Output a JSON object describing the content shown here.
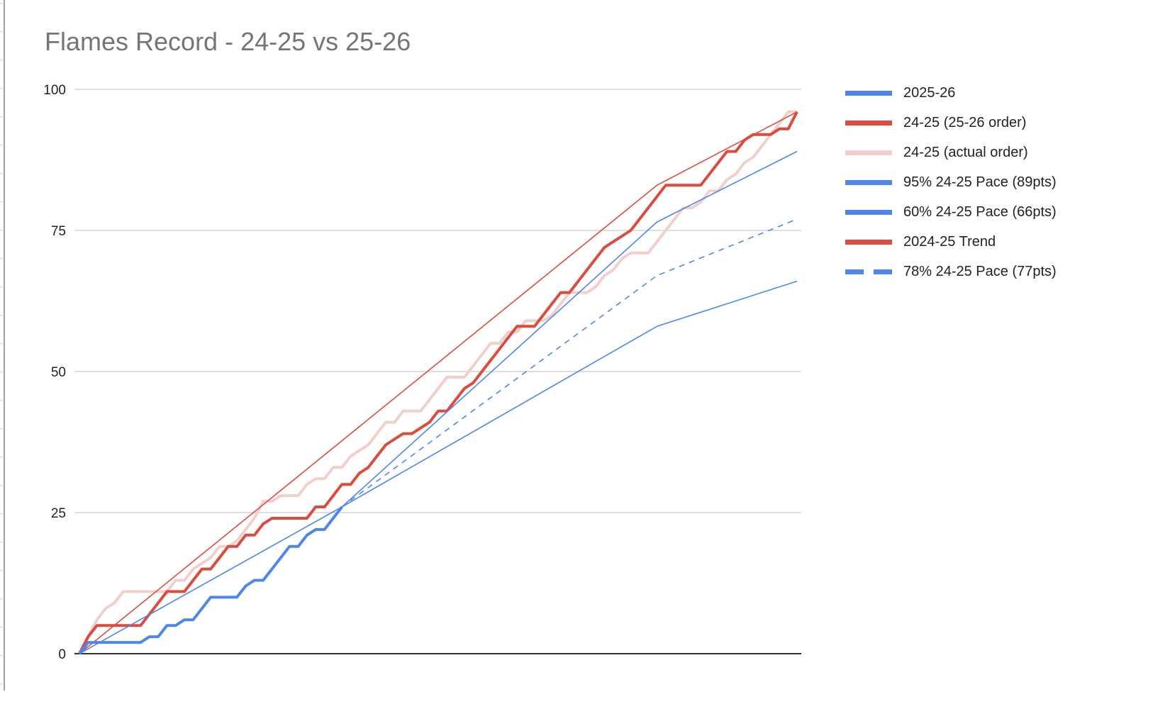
{
  "title": "Flames Record - 24-25 vs 25-26",
  "colors": {
    "blue": "#4f86ec",
    "red": "#db4c3f",
    "pink": "#f0cfcd",
    "grid": "#cccccc",
    "baseline": "#333333",
    "title": "#757575"
  },
  "legend": [
    {
      "label": "2025-26",
      "color": "#4f86ec",
      "style": "solid"
    },
    {
      "label": "24-25 (25-26 order)",
      "color": "#db4c3f",
      "style": "solid"
    },
    {
      "label": "24-25 (actual order)",
      "color": "#f0cfcd",
      "style": "solid"
    },
    {
      "label": "95% 24-25 Pace (89pts)",
      "color": "#4f86ec",
      "style": "solid"
    },
    {
      "label": "60% 24-25 Pace (66pts)",
      "color": "#4f86ec",
      "style": "solid"
    },
    {
      "label": "2024-25 Trend",
      "color": "#db4c3f",
      "style": "solid"
    },
    {
      "label": "78% 24-25 Pace (77pts)",
      "color": "#4f86ec",
      "style": "dashed"
    }
  ],
  "chart_data": {
    "type": "line",
    "title": "Flames Record - 24-25 vs 25-26",
    "xlabel": "",
    "ylabel": "",
    "ylim": [
      0,
      100
    ],
    "yticks": [
      0,
      25,
      50,
      75,
      100
    ],
    "xlim": [
      0,
      82
    ],
    "grid": true,
    "legend_position": "right",
    "series": [
      {
        "name": "24-25 (actual order)",
        "color": "#f0cfcd",
        "width": 4,
        "dash": "",
        "x": [
          0,
          1,
          2,
          3,
          4,
          5,
          6,
          7,
          8,
          9,
          10,
          11,
          12,
          13,
          14,
          15,
          16,
          17,
          18,
          19,
          20,
          21,
          22,
          23,
          24,
          25,
          26,
          27,
          28,
          29,
          30,
          31,
          32,
          33,
          34,
          35,
          36,
          37,
          38,
          39,
          40,
          41,
          42,
          43,
          44,
          45,
          46,
          47,
          48,
          49,
          50,
          51,
          52,
          53,
          54,
          55,
          56,
          57,
          58,
          59,
          60,
          61,
          62,
          63,
          64,
          65,
          66,
          67,
          68,
          69,
          70,
          71,
          72,
          73,
          74,
          75,
          76,
          77,
          78,
          79,
          80,
          81,
          82
        ],
        "y": [
          0,
          3,
          6,
          8,
          9,
          11,
          11,
          11,
          11,
          11,
          11,
          13,
          13,
          15,
          16,
          17,
          19,
          19,
          20,
          22,
          24,
          27,
          27,
          28,
          28,
          28,
          30,
          31,
          31,
          33,
          33,
          35,
          36,
          37,
          39,
          41,
          41,
          43,
          43,
          43,
          45,
          47,
          49,
          49,
          49,
          51,
          53,
          55,
          55,
          57,
          57,
          59,
          59,
          59,
          60,
          62,
          64,
          64,
          64,
          65,
          67,
          68,
          70,
          71,
          71,
          71,
          73,
          75,
          77,
          79,
          79,
          80,
          82,
          82,
          84,
          85,
          87,
          88,
          90,
          92,
          94,
          96,
          96
        ]
      },
      {
        "name": "2024-25 Trend",
        "color": "#db4c3f",
        "width": 1.6,
        "dash": "",
        "x": [
          0,
          66,
          82
        ],
        "y": [
          0,
          83,
          96
        ]
      },
      {
        "name": "24-25 (25-26 order)",
        "color": "#db4c3f",
        "width": 4,
        "dash": "",
        "x": [
          0,
          1,
          2,
          3,
          4,
          5,
          6,
          7,
          8,
          9,
          10,
          11,
          12,
          13,
          14,
          15,
          16,
          17,
          18,
          19,
          20,
          21,
          22,
          23,
          24,
          25,
          26,
          27,
          28,
          29,
          30,
          31,
          32,
          33,
          34,
          35,
          36,
          37,
          38,
          39,
          40,
          41,
          42,
          43,
          44,
          45,
          46,
          47,
          48,
          49,
          50,
          51,
          52,
          53,
          54,
          55,
          56,
          57,
          58,
          59,
          60,
          61,
          62,
          63,
          64,
          65,
          66,
          67,
          68,
          69,
          70,
          71,
          72,
          73,
          74,
          75,
          76,
          77,
          78,
          79,
          80,
          81,
          82
        ],
        "y": [
          0,
          3,
          5,
          5,
          5,
          5,
          5,
          5,
          7,
          9,
          11,
          11,
          11,
          13,
          15,
          15,
          17,
          19,
          19,
          21,
          21,
          23,
          24,
          24,
          24,
          24,
          24,
          26,
          26,
          28,
          30,
          30,
          32,
          33,
          35,
          37,
          38,
          39,
          39,
          40,
          41,
          43,
          43,
          45,
          47,
          48,
          50,
          52,
          54,
          56,
          58,
          58,
          58,
          60,
          62,
          64,
          64,
          66,
          68,
          70,
          72,
          73,
          74,
          75,
          77,
          79,
          81,
          83,
          83,
          83,
          83,
          83,
          85,
          87,
          89,
          89,
          91,
          92,
          92,
          92,
          93,
          93,
          96
        ]
      },
      {
        "name": "95% 24-25 Pace (89pts)",
        "color": "#4f86ec",
        "width": 1.6,
        "dash": "",
        "x": [
          30,
          66,
          82
        ],
        "y": [
          26,
          76.5,
          89
        ]
      },
      {
        "name": "78% 24-25 Pace (77pts)",
        "color": "#4f86ec",
        "width": 1.6,
        "dash": "8,7",
        "x": [
          30,
          66,
          82
        ],
        "y": [
          26,
          67,
          77
        ]
      },
      {
        "name": "60% 24-25 Pace (66pts)",
        "color": "#4f86ec",
        "width": 1.6,
        "dash": "",
        "x": [
          30,
          66,
          82
        ],
        "y": [
          26,
          58,
          66
        ]
      },
      {
        "name": "2025-26 Trend",
        "color": "#4f86ec",
        "width": 1.6,
        "dash": "",
        "x": [
          0,
          30
        ],
        "y": [
          0,
          26
        ]
      },
      {
        "name": "2025-26",
        "color": "#4f86ec",
        "width": 4,
        "dash": "",
        "x": [
          0,
          1,
          2,
          3,
          4,
          5,
          6,
          7,
          8,
          9,
          10,
          11,
          12,
          13,
          14,
          15,
          16,
          17,
          18,
          19,
          20,
          21,
          22,
          23,
          24,
          25,
          26,
          27,
          28,
          29,
          30
        ],
        "y": [
          0,
          2,
          2,
          2,
          2,
          2,
          2,
          2,
          3,
          3,
          5,
          5,
          6,
          6,
          8,
          10,
          10,
          10,
          10,
          12,
          13,
          13,
          15,
          17,
          19,
          19,
          21,
          22,
          22,
          24,
          26
        ]
      }
    ]
  }
}
